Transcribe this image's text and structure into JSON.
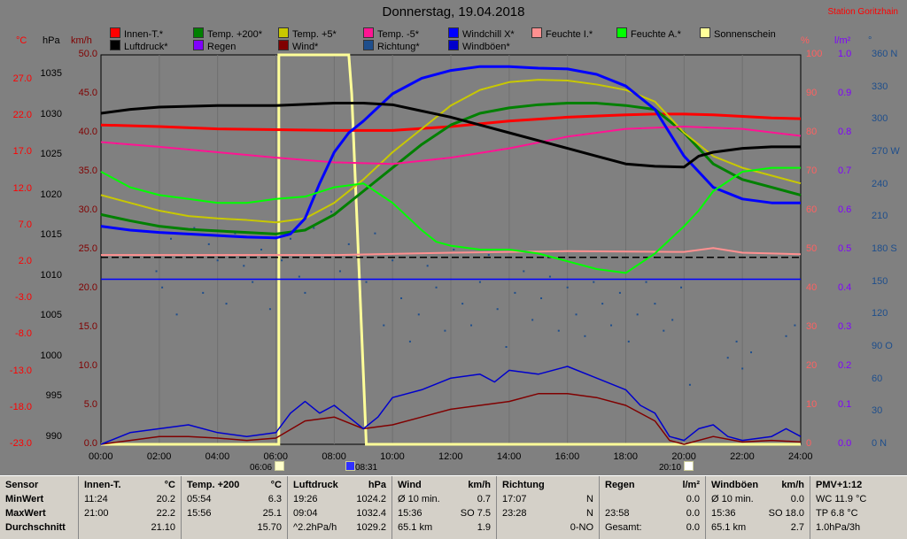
{
  "title": "Donnerstag, 19.04.2018",
  "station": "Station Goritzhain",
  "legend": [
    {
      "label": "Innen-T.*",
      "color": "#ff0000"
    },
    {
      "label": "Temp. +200*",
      "color": "#008000"
    },
    {
      "label": "Temp. +5*",
      "color": "#c8c800"
    },
    {
      "label": "Temp. -5*",
      "color": "#ff1493"
    },
    {
      "label": "Windchill X*",
      "color": "#0000ff"
    },
    {
      "label": "Feuchte I.*",
      "color": "#ff9090"
    },
    {
      "label": "Feuchte A.*",
      "color": "#00ff00"
    },
    {
      "label": "Sonnenschein",
      "color": "#ffff99"
    },
    {
      "label": "Luftdruck*",
      "color": "#000000"
    },
    {
      "label": "Regen",
      "color": "#8000ff"
    },
    {
      "label": "Wind*",
      "color": "#800000"
    },
    {
      "label": "Richtung*",
      "color": "#1e4e8c"
    },
    {
      "label": "Windböen*",
      "color": "#0000cc"
    }
  ],
  "units": {
    "celsius": "°C",
    "hpa": "hPa",
    "kmh": "km/h",
    "percent": "%",
    "lm2": "l/m²",
    "degree": "°"
  },
  "axis_labels": {
    "celsius": [
      "27.0",
      "22.0",
      "17.0",
      "12.0",
      "7.0",
      "2.0",
      "-3.0",
      "-8.0",
      "-13.0",
      "-18.0",
      "-23.0"
    ],
    "hpa": [
      "1035",
      "1030",
      "1025",
      "1020",
      "1015",
      "1010",
      "1005",
      "1000",
      "995",
      "990"
    ],
    "kmh": [
      "50.0",
      "45.0",
      "40.0",
      "35.0",
      "30.0",
      "25.0",
      "20.0",
      "15.0",
      "10.0",
      "5.0",
      "0.0"
    ],
    "percent": [
      "100",
      "90",
      "80",
      "70",
      "60",
      "50",
      "40",
      "30",
      "20",
      "10",
      "0"
    ],
    "lm2": [
      "1.0",
      "0.9",
      "0.8",
      "0.7",
      "0.6",
      "0.5",
      "0.4",
      "0.3",
      "0.2",
      "0.1",
      "0.0"
    ],
    "degree": [
      "360 N",
      "330",
      "300",
      "270 W",
      "240",
      "210",
      "180 S",
      "150",
      "120",
      "90 O",
      "60",
      "30",
      "0 N"
    ],
    "time": [
      "00:00",
      "02:00",
      "04:00",
      "06:00",
      "08:00",
      "10:00",
      "12:00",
      "14:00",
      "16:00",
      "18:00",
      "20:00",
      "22:00",
      "24:00"
    ]
  },
  "markers": {
    "sunrise": "06:06",
    "solar_noon": "08:31",
    "sunset": "20:10"
  },
  "chart_data": {
    "type": "line",
    "x_unit": "hours",
    "x_range": [
      0,
      24
    ],
    "kmh_range": [
      0,
      50
    ],
    "series": [
      {
        "name": "Innen-T.*",
        "color": "#ff0000",
        "axis": "kmh",
        "width": 3,
        "x": [
          0,
          2,
          4,
          6,
          8,
          10,
          12,
          14,
          16,
          18,
          19,
          20,
          21,
          22,
          23,
          24
        ],
        "y": [
          41.0,
          40.8,
          40.5,
          40.4,
          40.3,
          40.3,
          40.8,
          41.5,
          42.0,
          42.3,
          42.4,
          42.4,
          42.3,
          42.1,
          41.9,
          41.8
        ]
      },
      {
        "name": "Temp. +200*",
        "color": "#008000",
        "axis": "kmh",
        "width": 3,
        "x": [
          0,
          1,
          2,
          3,
          4,
          5,
          6,
          7,
          8,
          9,
          10,
          11,
          12,
          13,
          14,
          15,
          16,
          17,
          18,
          19,
          20,
          21,
          22,
          23,
          24
        ],
        "y": [
          29.5,
          28.7,
          28.0,
          27.6,
          27.4,
          27.2,
          27.0,
          27.5,
          29.5,
          32.5,
          35.5,
          38.5,
          41.0,
          42.5,
          43.2,
          43.6,
          43.8,
          43.8,
          43.5,
          43.0,
          40.0,
          36.0,
          34.0,
          33.0,
          32.0
        ]
      },
      {
        "name": "Temp. +5*",
        "color": "#c8c800",
        "axis": "kmh",
        "width": 2,
        "x": [
          0,
          1,
          2,
          3,
          4,
          5,
          6,
          7,
          8,
          9,
          10,
          11,
          12,
          13,
          14,
          15,
          16,
          17,
          18,
          19,
          20,
          21,
          22,
          23,
          24
        ],
        "y": [
          32.0,
          31.0,
          30.0,
          29.3,
          29.0,
          28.8,
          28.5,
          29.0,
          31.0,
          34.0,
          37.5,
          40.5,
          43.5,
          45.5,
          46.5,
          46.8,
          46.7,
          46.2,
          45.5,
          44.0,
          40.0,
          37.0,
          35.5,
          34.5,
          33.5
        ]
      },
      {
        "name": "Temp. -5*",
        "color": "#ff1493",
        "axis": "kmh",
        "width": 2,
        "x": [
          0,
          2,
          4,
          6,
          8,
          10,
          12,
          14,
          16,
          18,
          20,
          22,
          24
        ],
        "y": [
          38.8,
          38.2,
          37.5,
          36.8,
          36.2,
          36.0,
          36.8,
          38.0,
          39.5,
          40.5,
          40.8,
          40.5,
          39.6
        ]
      },
      {
        "name": "Windchill X*",
        "color": "#0000ff",
        "axis": "kmh",
        "width": 3,
        "x": [
          0,
          1,
          2,
          3,
          4,
          5,
          6,
          6.5,
          7,
          7.5,
          8,
          8.5,
          9,
          10,
          11,
          12,
          13,
          14,
          15,
          16,
          17,
          18,
          19,
          20,
          21,
          22,
          23,
          24
        ],
        "y": [
          28.0,
          27.5,
          27.2,
          27.0,
          26.8,
          26.6,
          26.5,
          27.0,
          29.0,
          33.5,
          37.5,
          40.0,
          41.5,
          45.0,
          47.0,
          48.0,
          48.5,
          48.5,
          48.3,
          48.2,
          47.5,
          46.0,
          43.0,
          37.0,
          33.0,
          31.5,
          31.0,
          31.0
        ]
      },
      {
        "name": "Feuchte I.*",
        "color": "#ff9090",
        "axis": "kmh",
        "width": 2,
        "x": [
          0,
          4,
          8,
          12,
          16,
          20,
          21,
          22,
          24
        ],
        "y": [
          24.3,
          24.3,
          24.3,
          24.6,
          24.8,
          24.7,
          25.2,
          24.6,
          24.4
        ]
      },
      {
        "name": "Feuchte A.*",
        "color": "#00ff00",
        "axis": "kmh",
        "width": 2,
        "x": [
          0,
          1,
          2,
          3,
          4,
          5,
          6,
          7,
          8,
          9,
          10,
          11,
          11.5,
          12,
          13,
          14,
          15,
          16,
          17,
          18,
          19,
          20,
          20.5,
          21,
          22,
          23,
          24
        ],
        "y": [
          35.0,
          33.0,
          32.0,
          31.5,
          31.0,
          31.0,
          31.5,
          31.8,
          33.0,
          33.5,
          31.0,
          27.5,
          26.0,
          25.5,
          25.0,
          25.0,
          24.5,
          23.5,
          22.5,
          22.0,
          24.5,
          28.0,
          30.0,
          32.5,
          35.0,
          35.5,
          35.5
        ]
      },
      {
        "name": "Luftdruck*",
        "color": "#000000",
        "axis": "kmh",
        "width": 3,
        "x": [
          0,
          1,
          2,
          4,
          6,
          8,
          9,
          10,
          11,
          12,
          13,
          14,
          15,
          16,
          17,
          18,
          19,
          20,
          20.5,
          21,
          22,
          23,
          24
        ],
        "y": [
          42.5,
          43.0,
          43.3,
          43.5,
          43.5,
          43.8,
          43.8,
          43.6,
          42.8,
          42.0,
          41.0,
          40.0,
          39.0,
          38.0,
          37.0,
          36.0,
          35.7,
          35.6,
          37.0,
          37.5,
          38.0,
          38.2,
          38.2
        ]
      },
      {
        "name": "Wind*",
        "color": "#800000",
        "axis": "kmh",
        "width": 1.5,
        "x": [
          0,
          1,
          2,
          3,
          4,
          5,
          6,
          7,
          8,
          9,
          10,
          11,
          12,
          13,
          14,
          15,
          16,
          17,
          18,
          19,
          19.5,
          20,
          21,
          22,
          23,
          24
        ],
        "y": [
          0,
          0.5,
          1.0,
          1.0,
          0.8,
          0.5,
          0.8,
          3.0,
          3.5,
          2.0,
          2.5,
          3.5,
          4.5,
          5.0,
          5.5,
          6.5,
          6.5,
          6.0,
          5.0,
          3.0,
          0.5,
          0.0,
          1.0,
          0.3,
          0.5,
          0.3
        ]
      },
      {
        "name": "Windböen*",
        "color": "#0000cc",
        "axis": "kmh",
        "width": 1.5,
        "x": [
          0,
          1,
          2,
          3,
          4,
          5,
          6,
          6.5,
          7,
          7.5,
          8,
          8.5,
          9,
          9.5,
          10,
          11,
          12,
          13,
          13.5,
          14,
          15,
          16,
          17,
          18,
          18.5,
          19,
          19.5,
          20,
          20.5,
          21,
          21.5,
          22,
          23,
          23.5,
          24
        ],
        "y": [
          0,
          1.5,
          2.0,
          2.5,
          1.5,
          1.0,
          1.5,
          4.0,
          5.5,
          4.0,
          5.0,
          3.5,
          2.0,
          3.5,
          6.0,
          7.0,
          8.5,
          9.0,
          8.0,
          9.5,
          9.0,
          10.0,
          8.5,
          7.0,
          5.0,
          4.0,
          1.0,
          0.5,
          2.0,
          2.5,
          1.0,
          0.5,
          1.0,
          2.0,
          1.0
        ]
      }
    ],
    "hlines": [
      {
        "name": "Regen-Linie",
        "color": "#0000ff",
        "y": 21.2
      },
      {
        "name": "Null-Linie",
        "color": "#000000",
        "y": 24.0
      }
    ],
    "sunshine": {
      "color": "#ffff99",
      "x": [
        0,
        6.1,
        6.1,
        8.5,
        8.6,
        9.1,
        9.2,
        24
      ],
      "y": [
        0,
        0,
        50,
        50,
        45,
        0,
        0,
        0
      ]
    },
    "direction_points": {
      "color": "#1e4e8c",
      "x": [
        1.9,
        2.1,
        2.4,
        2.6,
        2.9,
        3.2,
        3.5,
        3.7,
        4.0,
        4.3,
        4.6,
        4.9,
        5.2,
        5.5,
        5.8,
        6.2,
        6.5,
        6.8,
        7.0,
        7.3,
        7.6,
        7.9,
        8.2,
        8.5,
        8.8,
        9.1,
        9.4,
        9.7,
        10.0,
        10.3,
        10.6,
        10.9,
        11.2,
        11.5,
        11.8,
        12.1,
        12.4,
        12.7,
        13.0,
        13.3,
        13.6,
        13.9,
        14.2,
        14.5,
        14.8,
        15.1,
        15.4,
        15.7,
        16.0,
        16.3,
        16.6,
        16.9,
        17.2,
        17.5,
        17.8,
        18.1,
        18.4,
        18.7,
        19.0,
        19.3,
        19.6,
        19.9,
        20.2,
        21.5,
        21.8,
        22.0,
        22.3,
        23.5,
        23.8
      ],
      "deg": [
        160,
        145,
        190,
        120,
        175,
        200,
        140,
        185,
        170,
        130,
        195,
        165,
        150,
        180,
        125,
        170,
        190,
        155,
        140,
        200,
        175,
        215,
        160,
        185,
        230,
        150,
        195,
        110,
        170,
        135,
        95,
        120,
        165,
        145,
        105,
        180,
        130,
        110,
        150,
        175,
        125,
        90,
        140,
        160,
        115,
        135,
        155,
        105,
        145,
        120,
        100,
        150,
        130,
        110,
        140,
        95,
        120,
        150,
        130,
        105,
        115,
        145,
        55,
        80,
        95,
        70,
        85,
        100,
        110
      ]
    }
  },
  "table": {
    "rows": [
      "Sensor",
      "MinWert",
      "MaxWert",
      "Durchschnitt"
    ],
    "columns": [
      {
        "title": "Innen-T.",
        "unit": "°C",
        "c1": [
          "11:24",
          "21:00",
          ""
        ],
        "c2": [
          "20.2",
          "22.2",
          "21.10"
        ]
      },
      {
        "title": "Temp. +200",
        "unit": "°C",
        "c1": [
          "05:54",
          "15:56",
          ""
        ],
        "c2": [
          "6.3",
          "25.1",
          "15.70"
        ]
      },
      {
        "title": "Luftdruck",
        "unit": "hPa",
        "c1": [
          "19:26",
          "09:04",
          "^2.2hPa/h"
        ],
        "c2": [
          "1024.2",
          "1032.4",
          "1029.2"
        ]
      },
      {
        "title": "Wind",
        "unit": "km/h",
        "c1": [
          "Ø 10 min.",
          "15:36",
          "65.1 km"
        ],
        "c2": [
          "0.7",
          "SO 7.5",
          "1.9"
        ]
      },
      {
        "title": "Richtung",
        "unit": "",
        "c1": [
          "17:07",
          "23:28",
          ""
        ],
        "c2": [
          "N",
          "N",
          "0-NO"
        ]
      },
      {
        "title": "Regen",
        "unit": "l/m²",
        "c1": [
          "",
          "23:58",
          "Gesamt:"
        ],
        "c2": [
          "0.0",
          "0.0",
          "0.0"
        ]
      },
      {
        "title": "Windböen",
        "unit": "km/h",
        "c1": [
          "Ø 10 min.",
          "15:36",
          "65.1 km"
        ],
        "c2": [
          "0.0",
          "SO 18.0",
          "2.7"
        ]
      },
      {
        "title": "PMV+1:12",
        "unit": "",
        "c1": [
          "WC 11.9 °C",
          "TP 6.8 °C",
          "1.0hPa/3h"
        ],
        "c2": [
          "",
          "",
          ""
        ]
      }
    ]
  }
}
